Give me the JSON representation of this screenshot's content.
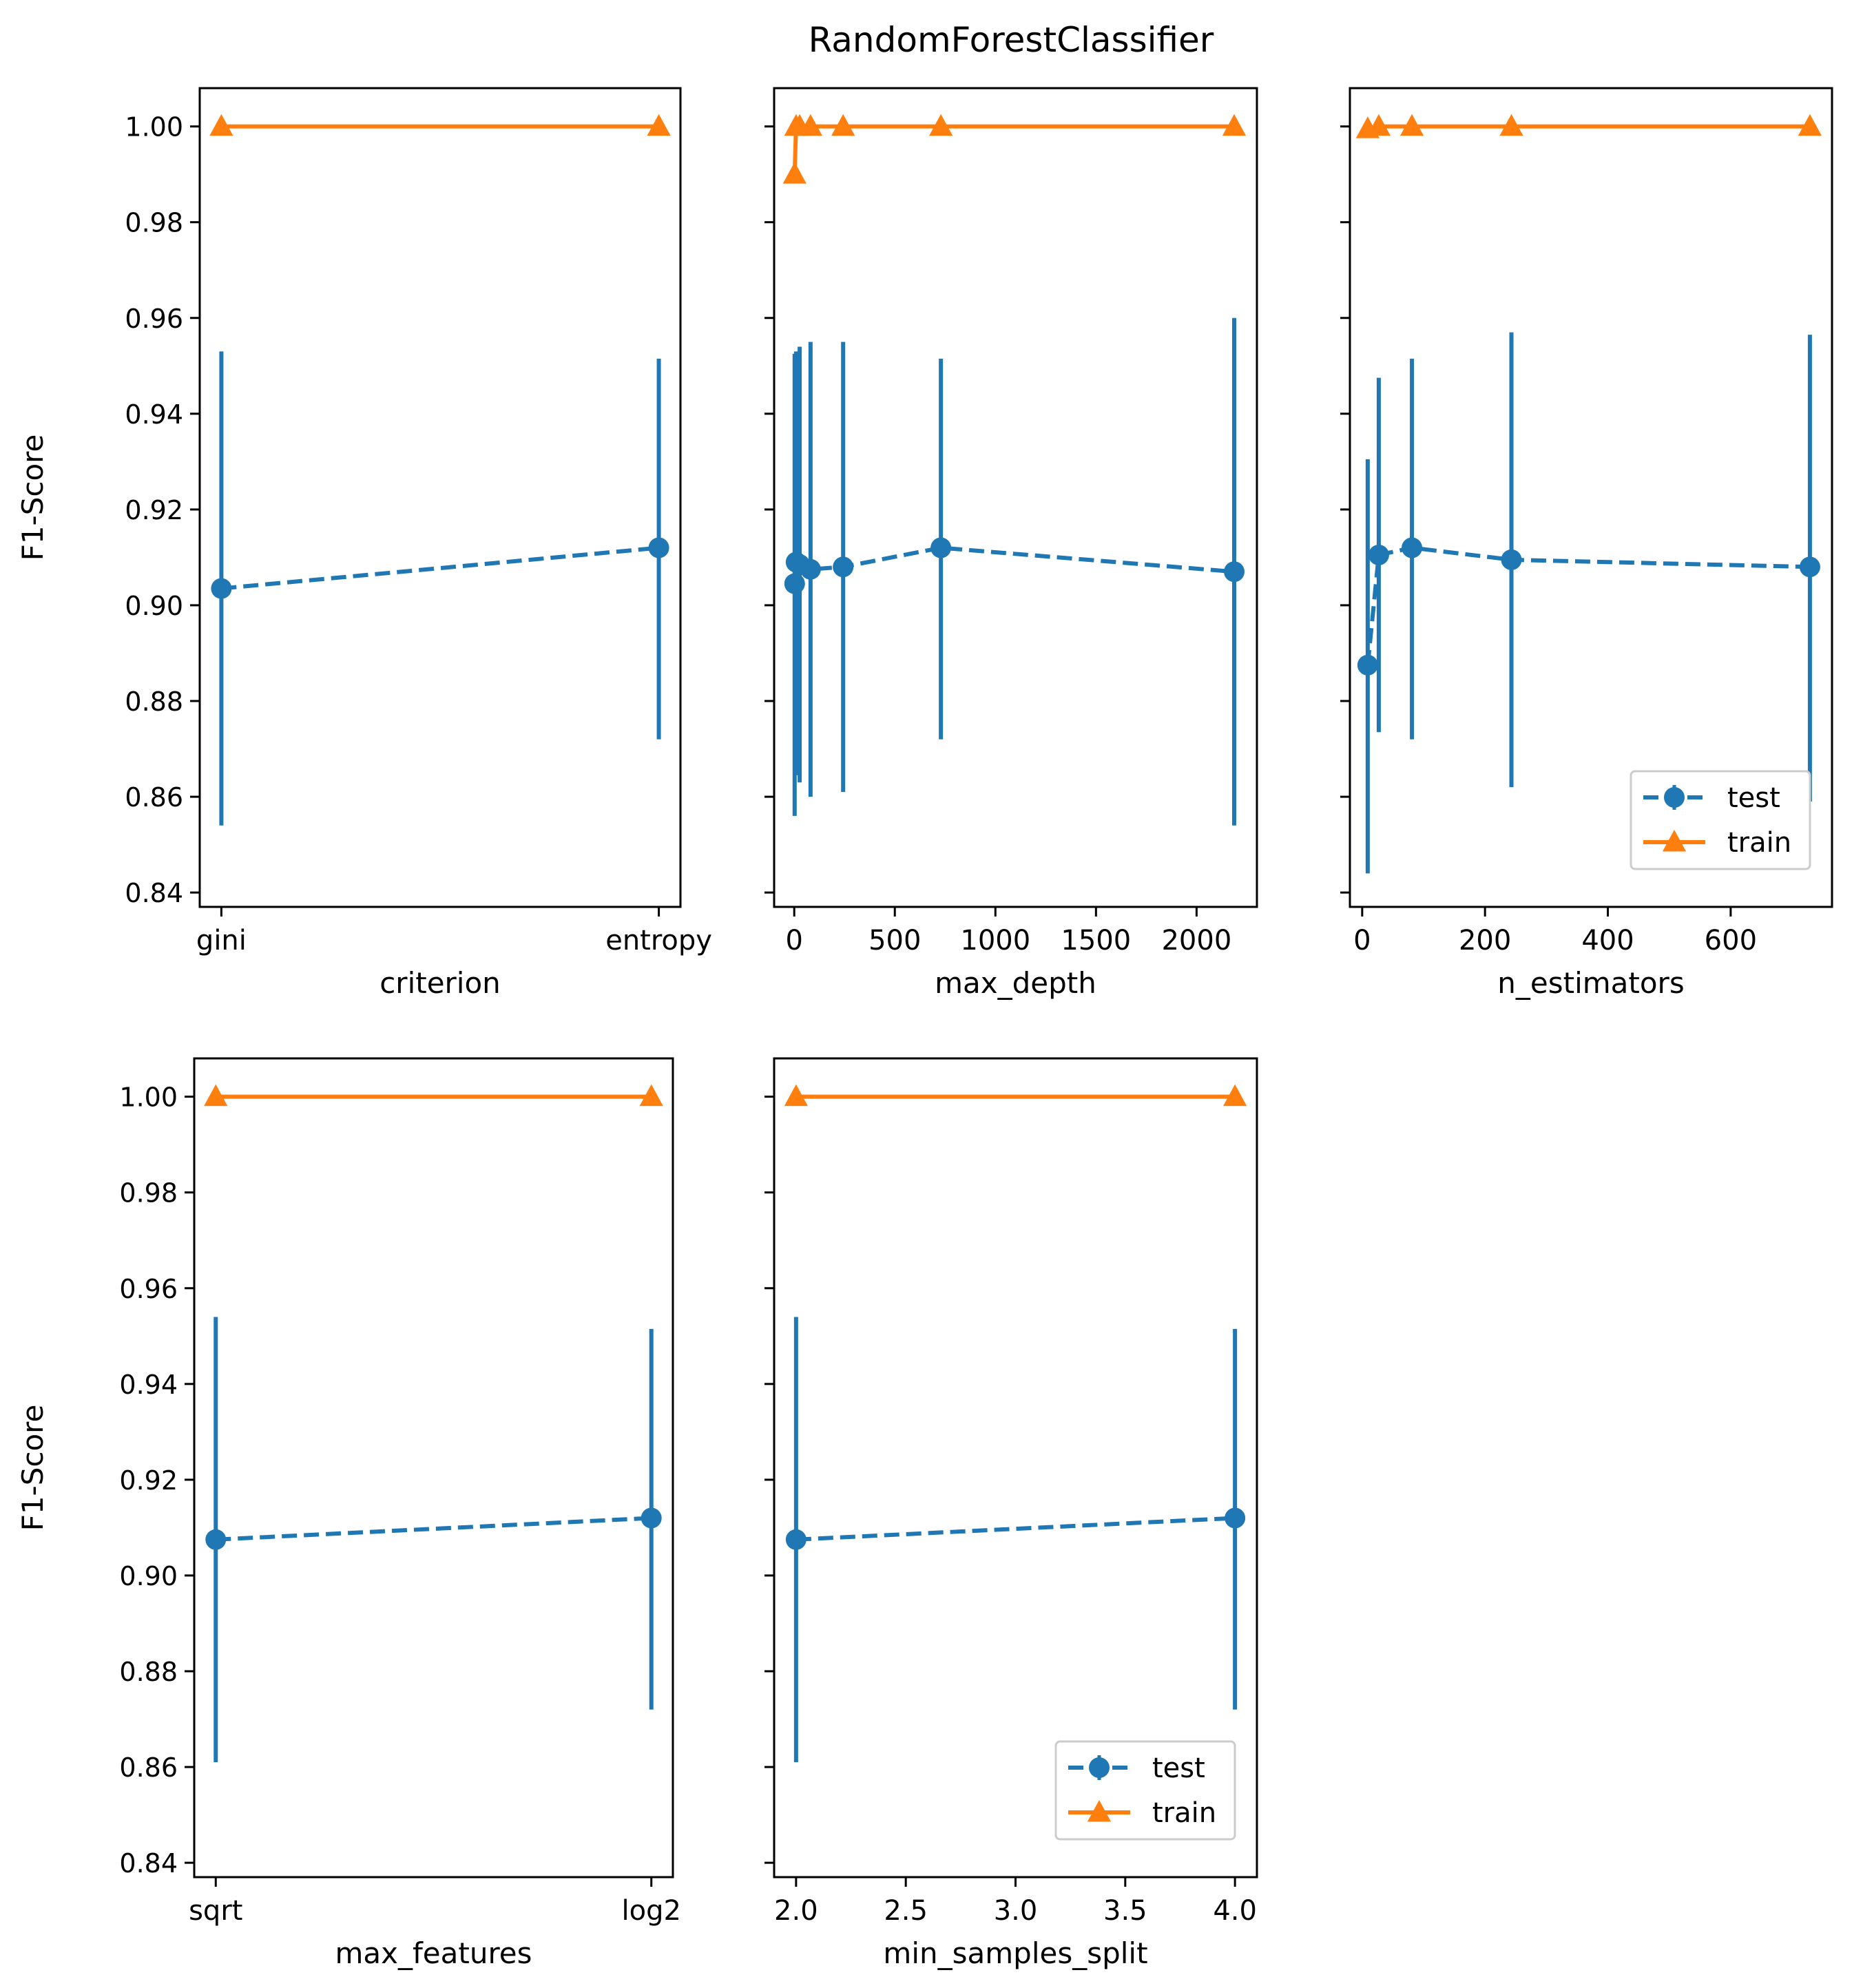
{
  "figure": {
    "title": "RandomForestClassifier",
    "colors": {
      "test": "#1f77b4",
      "train": "#ff7f0e",
      "frame": "#000000"
    },
    "legend": {
      "test_label": "test",
      "train_label": "train"
    }
  },
  "chart_data": [
    {
      "type": "line",
      "xtype": "categorical",
      "xlabel": "criterion",
      "ylabel": "F1-Score",
      "categories": [
        "gini",
        "entropy"
      ],
      "ylim": [
        0.837,
        1.008
      ],
      "yticks": [
        0.84,
        0.86,
        0.88,
        0.9,
        0.92,
        0.94,
        0.96,
        0.98,
        1.0
      ],
      "legend": "none",
      "series": [
        {
          "name": "test",
          "style": "dashed",
          "marker": "circle",
          "values": [
            0.9035,
            0.912
          ],
          "err_low": [
            0.854,
            0.872
          ],
          "err_high": [
            0.953,
            0.9515
          ]
        },
        {
          "name": "train",
          "style": "solid",
          "marker": "triangle",
          "values": [
            1.0,
            1.0
          ]
        }
      ]
    },
    {
      "type": "line",
      "xtype": "numeric",
      "xlabel": "max_depth",
      "ylabel": "",
      "x": [
        2,
        9,
        27,
        81,
        243,
        729,
        2187
      ],
      "xlim": [
        -100,
        2300
      ],
      "xticks": [
        0,
        500,
        1000,
        1500,
        2000
      ],
      "ylim": [
        0.837,
        1.008
      ],
      "yticks": [
        0.84,
        0.86,
        0.88,
        0.9,
        0.92,
        0.94,
        0.96,
        0.98,
        1.0
      ],
      "legend": "none",
      "series": [
        {
          "name": "test",
          "style": "dashed",
          "marker": "circle",
          "values": [
            0.9045,
            0.909,
            0.9085,
            0.9075,
            0.908,
            0.912,
            0.907
          ],
          "err_low": [
            0.856,
            0.8645,
            0.863,
            0.86,
            0.861,
            0.872,
            0.854
          ],
          "err_high": [
            0.9525,
            0.953,
            0.954,
            0.955,
            0.955,
            0.9515,
            0.96
          ]
        },
        {
          "name": "train",
          "style": "solid",
          "marker": "triangle",
          "values": [
            0.99,
            1.0,
            1.0,
            1.0,
            1.0,
            1.0,
            1.0
          ]
        }
      ]
    },
    {
      "type": "line",
      "xtype": "numeric",
      "xlabel": "n_estimators",
      "ylabel": "",
      "x": [
        9,
        27,
        81,
        243,
        729
      ],
      "xlim": [
        -20,
        765
      ],
      "xticks": [
        0,
        200,
        400,
        600
      ],
      "ylim": [
        0.837,
        1.008
      ],
      "yticks": [
        0.84,
        0.86,
        0.88,
        0.9,
        0.92,
        0.94,
        0.96,
        0.98,
        1.0
      ],
      "legend": "lower-right",
      "series": [
        {
          "name": "test",
          "style": "dashed",
          "marker": "circle",
          "values": [
            0.8875,
            0.9105,
            0.912,
            0.9095,
            0.908
          ],
          "err_low": [
            0.844,
            0.8735,
            0.872,
            0.862,
            0.859
          ],
          "err_high": [
            0.9305,
            0.9475,
            0.9515,
            0.957,
            0.9565
          ]
        },
        {
          "name": "train",
          "style": "solid",
          "marker": "triangle",
          "values": [
            0.9995,
            1.0,
            1.0,
            1.0,
            1.0
          ]
        }
      ]
    },
    {
      "type": "line",
      "xtype": "categorical",
      "xlabel": "max_features",
      "ylabel": "F1-Score",
      "categories": [
        "sqrt",
        "log2"
      ],
      "ylim": [
        0.837,
        1.008
      ],
      "yticks": [
        0.84,
        0.86,
        0.88,
        0.9,
        0.92,
        0.94,
        0.96,
        0.98,
        1.0
      ],
      "legend": "none",
      "series": [
        {
          "name": "test",
          "style": "dashed",
          "marker": "circle",
          "values": [
            0.9075,
            0.912
          ],
          "err_low": [
            0.861,
            0.872
          ],
          "err_high": [
            0.954,
            0.9515
          ]
        },
        {
          "name": "train",
          "style": "solid",
          "marker": "triangle",
          "values": [
            1.0,
            1.0
          ]
        }
      ]
    },
    {
      "type": "line",
      "xtype": "numeric",
      "xlabel": "min_samples_split",
      "ylabel": "",
      "x": [
        2.0,
        4.0
      ],
      "xlim": [
        1.9,
        4.1
      ],
      "xticks": [
        2.0,
        2.5,
        3.0,
        3.5,
        4.0
      ],
      "xtick_labels": [
        "2.0",
        "2.5",
        "3.0",
        "3.5",
        "4.0"
      ],
      "ylim": [
        0.837,
        1.008
      ],
      "yticks": [
        0.84,
        0.86,
        0.88,
        0.9,
        0.92,
        0.94,
        0.96,
        0.98,
        1.0
      ],
      "legend": "lower-right",
      "series": [
        {
          "name": "test",
          "style": "dashed",
          "marker": "circle",
          "values": [
            0.9075,
            0.912
          ],
          "err_low": [
            0.861,
            0.872
          ],
          "err_high": [
            0.954,
            0.9515
          ]
        },
        {
          "name": "train",
          "style": "solid",
          "marker": "triangle",
          "values": [
            1.0,
            1.0
          ]
        }
      ]
    }
  ]
}
